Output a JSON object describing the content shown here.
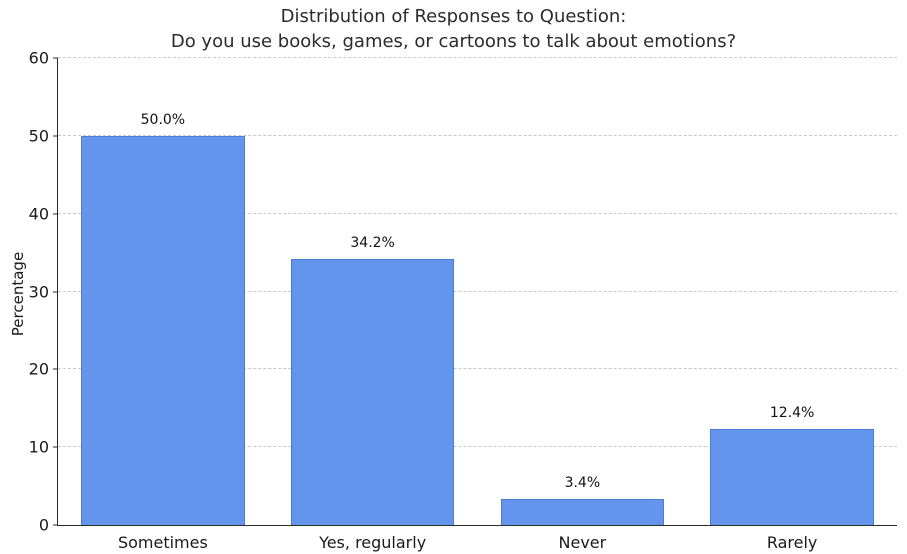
{
  "chart_data": {
    "type": "bar",
    "title": "Distribution of Responses to Question:\nDo you use books, games, or cartoons to talk about emotions?",
    "title_lines": [
      "Distribution of Responses to Question:",
      "Do you use books, games, or cartoons to talk about emotions?"
    ],
    "categories": [
      "Sometimes",
      "Yes, regularly",
      "Never",
      "Rarely"
    ],
    "values": [
      50.0,
      34.2,
      3.4,
      12.4
    ],
    "value_labels": [
      "50.0%",
      "34.2%",
      "3.4%",
      "12.4%"
    ],
    "xlabel": "",
    "ylabel": "Percentage",
    "ylim": [
      0,
      60
    ],
    "yticks": [
      0,
      10,
      20,
      30,
      40,
      50,
      60
    ],
    "grid": "horizontal-dashed",
    "legend": "none",
    "bar_color": "#6495ED",
    "bar_edge_color": "#4a7cd6"
  }
}
